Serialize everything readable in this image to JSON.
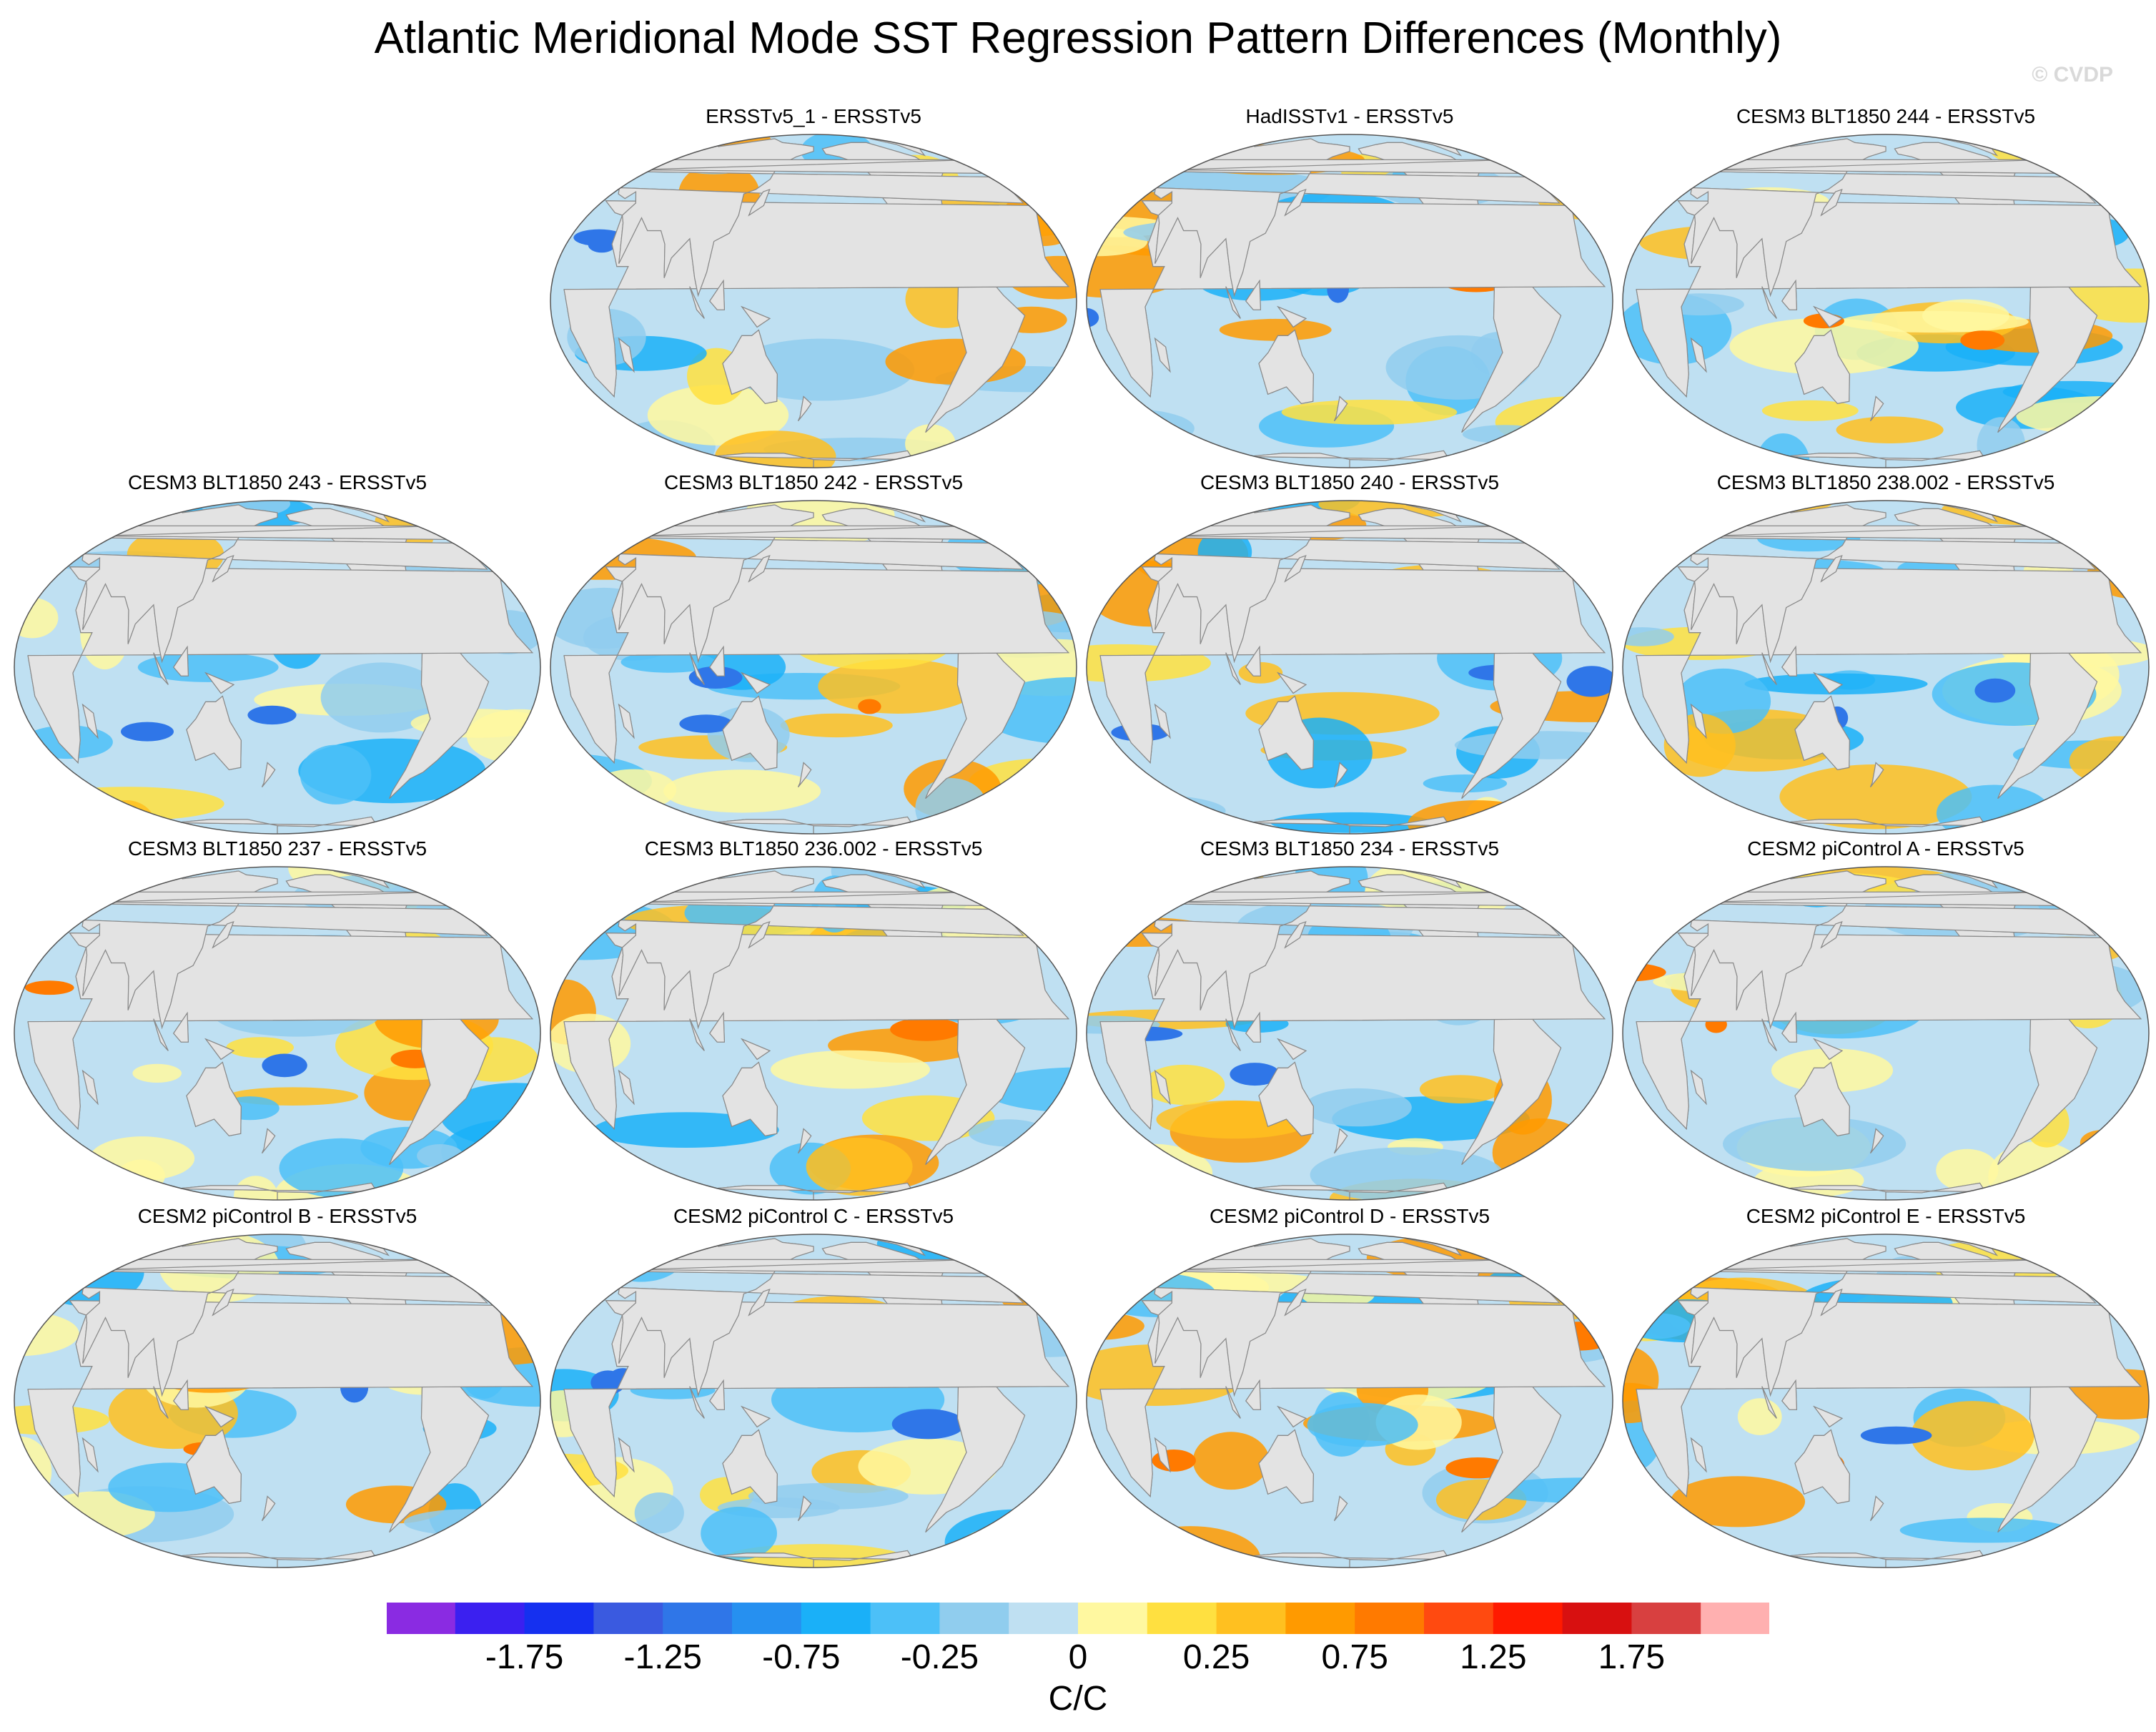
{
  "figure": {
    "title": "Atlantic Meridional Mode SST Regression Pattern Differences (Monthly)",
    "watermark": "© CVDP",
    "units": "C/C"
  },
  "colors": {
    "ocean": "#bfe0f2",
    "land": "#e3e3e3",
    "coast": "#8a8a8a",
    "outline": "#555555"
  },
  "panels": [
    {
      "title": "ERSSTv5_1 - ERSSTv5",
      "seed": 3
    },
    {
      "title": "HadISSTv1 - ERSSTv5",
      "seed": 7
    },
    {
      "title": "CESM3 BLT1850 244 - ERSSTv5",
      "seed": 11
    },
    {
      "title": "CESM3 BLT1850 243 - ERSSTv5",
      "seed": 17
    },
    {
      "title": "CESM3 BLT1850 242 - ERSSTv5",
      "seed": 23
    },
    {
      "title": "CESM3 BLT1850 240 - ERSSTv5",
      "seed": 29
    },
    {
      "title": "CESM3 BLT1850 238.002 - ERSSTv5",
      "seed": 31
    },
    {
      "title": "CESM3 BLT1850 237 - ERSSTv5",
      "seed": 37
    },
    {
      "title": "CESM3 BLT1850 236.002 - ERSSTv5",
      "seed": 41
    },
    {
      "title": "CESM3 BLT1850 234 - ERSSTv5",
      "seed": 43
    },
    {
      "title": "CESM2 piControl A - ERSSTv5",
      "seed": 47
    },
    {
      "title": "CESM2 piControl B - ERSSTv5",
      "seed": 53
    },
    {
      "title": "CESM2 piControl C - ERSSTv5",
      "seed": 59
    },
    {
      "title": "CESM2 piControl D - ERSSTv5",
      "seed": 61
    },
    {
      "title": "CESM2 piControl E - ERSSTv5",
      "seed": 67
    }
  ],
  "colorbar": {
    "colors": [
      "#8a2be2",
      "#3b20f0",
      "#1530f0",
      "#3a5ae0",
      "#2f76e8",
      "#2690f0",
      "#1ab0f8",
      "#4cc0f8",
      "#90cdee",
      "#bfe0f2",
      "#fff8a0",
      "#ffe040",
      "#ffc020",
      "#ff9a00",
      "#ff7a00",
      "#ff4a10",
      "#ff1a00",
      "#d81010",
      "#d84040",
      "#ffb0b0"
    ],
    "tick_labels": [
      "-1.75",
      "-1.25",
      "-0.75",
      "-0.25",
      "0",
      "0.25",
      "0.75",
      "1.25",
      "1.75"
    ]
  }
}
